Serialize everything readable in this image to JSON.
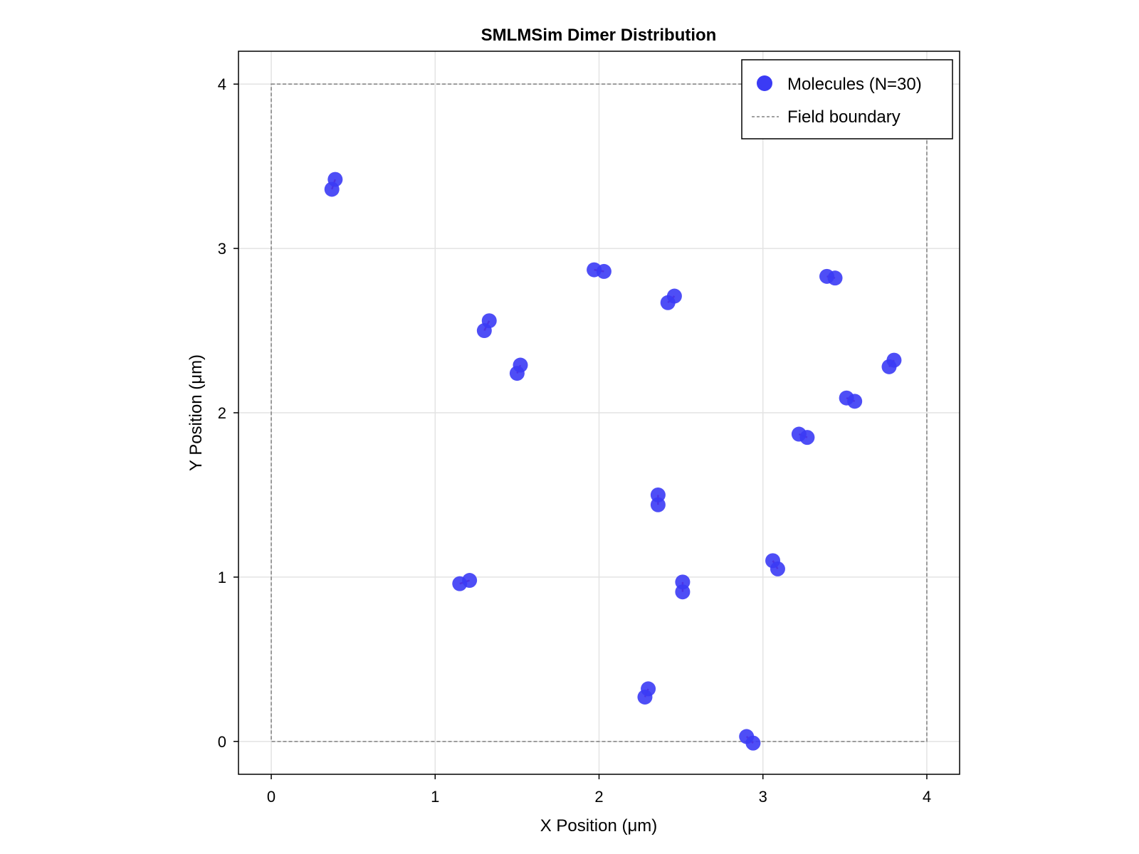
{
  "chart_data": {
    "type": "scatter",
    "title": "SMLMSim Dimer Distribution",
    "xlabel": "X Position (μm)",
    "ylabel": "Y Position (μm)",
    "xlim": [
      -0.2,
      4.2
    ],
    "ylim": [
      -0.2,
      4.2
    ],
    "xticks": [
      "0",
      "1",
      "2",
      "3",
      "4"
    ],
    "yticks": [
      "0",
      "1",
      "2",
      "3",
      "4"
    ],
    "grid": true,
    "legend_position": "top-right",
    "field_boundary": {
      "name": "Field boundary",
      "x0": 0,
      "y0": 0,
      "x1": 4,
      "y1": 4,
      "color": "#808080"
    },
    "series": [
      {
        "name": "Molecules (N=30)",
        "color": "#3b3bf5",
        "points": [
          [
            0.37,
            3.36
          ],
          [
            0.39,
            3.42
          ],
          [
            1.15,
            0.96
          ],
          [
            1.21,
            0.98
          ],
          [
            1.3,
            2.5
          ],
          [
            1.33,
            2.56
          ],
          [
            1.5,
            2.24
          ],
          [
            1.52,
            2.29
          ],
          [
            1.97,
            2.87
          ],
          [
            2.03,
            2.86
          ],
          [
            2.28,
            0.27
          ],
          [
            2.3,
            0.32
          ],
          [
            2.36,
            1.5
          ],
          [
            2.36,
            1.44
          ],
          [
            2.42,
            2.67
          ],
          [
            2.46,
            2.71
          ],
          [
            2.51,
            0.97
          ],
          [
            2.51,
            0.91
          ],
          [
            2.9,
            0.03
          ],
          [
            2.94,
            -0.01
          ],
          [
            3.06,
            1.1
          ],
          [
            3.09,
            1.05
          ],
          [
            3.22,
            1.87
          ],
          [
            3.27,
            1.85
          ],
          [
            3.39,
            2.83
          ],
          [
            3.44,
            2.82
          ],
          [
            3.51,
            2.09
          ],
          [
            3.56,
            2.07
          ],
          [
            3.77,
            2.28
          ],
          [
            3.8,
            2.32
          ]
        ]
      }
    ],
    "pair_link_color": "#d0004a"
  }
}
